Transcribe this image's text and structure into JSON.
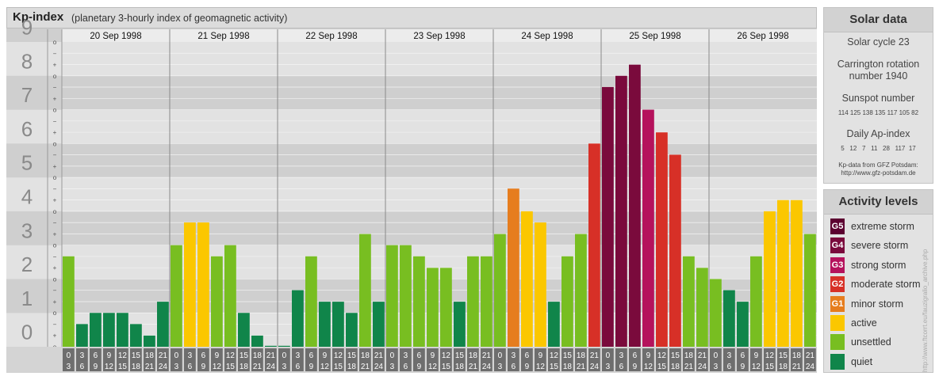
{
  "header": {
    "title": "Kp-index",
    "subtitle": "(planetary 3-hourly index of geomagnetic activity)"
  },
  "y_axis": {
    "labels": [
      "0",
      "1",
      "2",
      "3",
      "4",
      "5",
      "6",
      "7",
      "8",
      "9"
    ],
    "sub_marks": [
      "o",
      "+",
      "−",
      "o"
    ]
  },
  "days": [
    "20 Sep 1998",
    "21 Sep 1998",
    "22 Sep 1998",
    "23 Sep 1998",
    "24 Sep 1998",
    "25 Sep 1998",
    "26 Sep 1998"
  ],
  "intervals": [
    {
      "start": "0",
      "end": "3"
    },
    {
      "start": "3",
      "end": "6"
    },
    {
      "start": "6",
      "end": "9"
    },
    {
      "start": "9",
      "end": "12"
    },
    {
      "start": "12",
      "end": "15"
    },
    {
      "start": "15",
      "end": "18"
    },
    {
      "start": "18",
      "end": "21"
    },
    {
      "start": "21",
      "end": "24"
    }
  ],
  "colors": {
    "quiet": "#10854a",
    "unsettled": "#78be21",
    "active": "#fbc700",
    "G1": "#e67d1e",
    "G2": "#d73027",
    "G3": "#b5125c",
    "G4": "#7a0a3c",
    "G5": "#5c0030",
    "band_dark": "#cfcfcf",
    "band_light": "#e2e2e2"
  },
  "chart_data": {
    "type": "bar",
    "title": "Kp-index",
    "subtitle": "(planetary 3-hourly index of geomagnetic activity)",
    "ylim": [
      0,
      9
    ],
    "categories": [
      "20 Sep 1998",
      "21 Sep 1998",
      "22 Sep 1998",
      "23 Sep 1998",
      "24 Sep 1998",
      "25 Sep 1998",
      "26 Sep 1998"
    ],
    "x_tick_labels": [
      "0/3",
      "3/6",
      "6/9",
      "9/12",
      "12/15",
      "15/18",
      "18/21",
      "21/24"
    ],
    "values": [
      [
        2.67,
        0.67,
        1.0,
        1.0,
        1.0,
        0.67,
        0.33,
        1.33
      ],
      [
        3.0,
        3.67,
        3.67,
        2.67,
        3.0,
        1.0,
        0.33,
        0.0
      ],
      [
        0.0,
        1.67,
        2.67,
        1.33,
        1.33,
        1.0,
        3.33,
        1.33
      ],
      [
        3.0,
        3.0,
        2.67,
        2.33,
        2.33,
        1.33,
        2.67,
        2.67
      ],
      [
        3.33,
        4.67,
        4.0,
        3.67,
        1.33,
        2.67,
        3.33,
        6.0
      ],
      [
        7.67,
        8.0,
        8.33,
        7.0,
        6.33,
        5.67,
        2.67,
        2.33
      ],
      [
        2.0,
        1.67,
        1.33,
        2.67,
        4.0,
        4.33,
        4.33,
        3.33
      ]
    ]
  },
  "solar": {
    "title": "Solar data",
    "cycle": "Solar cycle 23",
    "carrington_line1": "Carrington rotation",
    "carrington_line2": "number 1940",
    "sunspot_label": "Sunspot number",
    "sunspot_values": "114 125 138 135 117 105 82",
    "ap_label": "Daily Ap-index",
    "ap_values": "5   12   7   11   28   117  17",
    "source_line1": "Kp-data from GFZ Potsdam:",
    "source_line2": "http://www.gfz-potsdam.de"
  },
  "activity": {
    "title": "Activity levels",
    "items": [
      {
        "code": "G5",
        "label": "extreme storm",
        "color": "#5c0030"
      },
      {
        "code": "G4",
        "label": "severe storm",
        "color": "#7a0a3c"
      },
      {
        "code": "G3",
        "label": "strong storm",
        "color": "#b5125c"
      },
      {
        "code": "G2",
        "label": "moderate storm",
        "color": "#d73027"
      },
      {
        "code": "G1",
        "label": "minor storm",
        "color": "#e67d1e"
      },
      {
        "code": "",
        "label": "active",
        "color": "#fbc700"
      },
      {
        "code": "",
        "label": "unsettled",
        "color": "#78be21"
      },
      {
        "code": "",
        "label": "quiet",
        "color": "#10854a"
      }
    ]
  },
  "credit": "http://www.ftcorrt.eu/fauzigralio_archive.php"
}
